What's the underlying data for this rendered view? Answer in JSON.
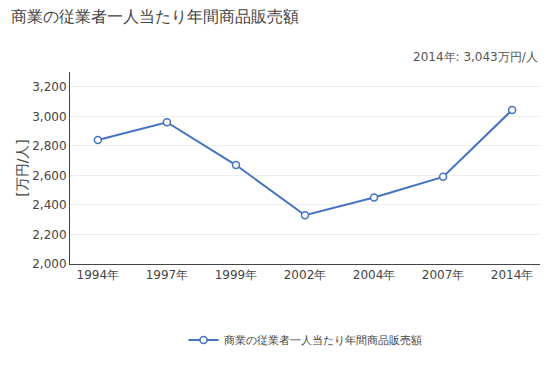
{
  "chart_data": {
    "type": "line",
    "title": "商業の従業者一人当たり年間商品販売額",
    "ylabel": "[万円/人]",
    "annotation": "2014年: 3,043万円/人",
    "categories": [
      "1994年",
      "1997年",
      "1999年",
      "2002年",
      "2004年",
      "2007年",
      "2014年"
    ],
    "series": [
      {
        "name": "商業の従業者一人当たり年間商品販売額",
        "color": "#4472C4",
        "marker": "circle",
        "values": [
          2840,
          2960,
          2670,
          2330,
          2450,
          2590,
          3043
        ]
      }
    ],
    "ylim": [
      2000,
      3300
    ],
    "yticks": [
      {
        "value": 2000,
        "label": "2,000"
      },
      {
        "value": 2200,
        "label": "2,200"
      },
      {
        "value": 2400,
        "label": "2,400"
      },
      {
        "value": 2600,
        "label": "2,600"
      },
      {
        "value": 2800,
        "label": "2,800"
      },
      {
        "value": 3000,
        "label": "3,000"
      },
      {
        "value": 3200,
        "label": "3,200"
      }
    ],
    "grid": true,
    "legend": "bottom"
  }
}
